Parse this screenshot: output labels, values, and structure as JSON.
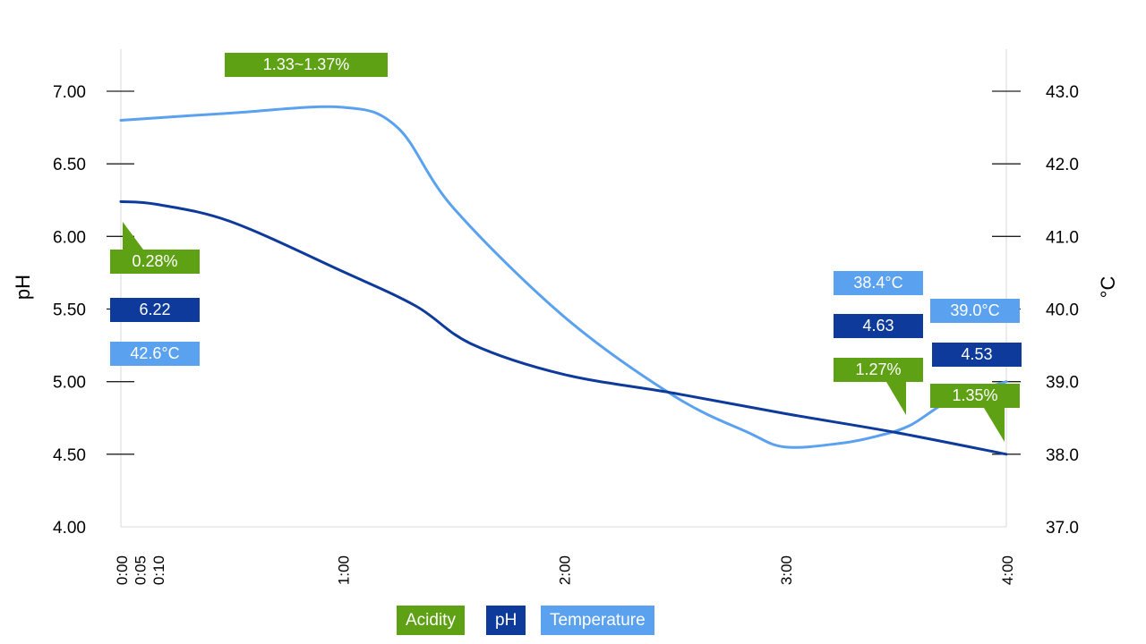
{
  "chart_data": {
    "type": "line",
    "x_ticks": [
      "0:00",
      "0:05",
      "0:10",
      "1:00",
      "2:00",
      "3:00",
      "4:00"
    ],
    "x_tick_minutes": [
      0,
      5,
      10,
      60,
      120,
      180,
      240
    ],
    "xlim_minutes": [
      0,
      240
    ],
    "ylabel_left": "pH",
    "ylim_left": [
      4.0,
      7.25
    ],
    "yticks_left": [
      "4.00",
      "4.50",
      "5.00",
      "5.50",
      "6.00",
      "6.50",
      "7.00"
    ],
    "ylabel_right": "°C",
    "ylim_right": [
      37.0,
      43.5
    ],
    "yticks_right": [
      "37.0",
      "38.0",
      "39.0",
      "40.0",
      "41.0",
      "42.0",
      "43.0"
    ],
    "series": [
      {
        "name": "pH",
        "axis": "left",
        "color": "#0d3a9b",
        "points": [
          [
            0,
            6.24
          ],
          [
            10,
            6.22
          ],
          [
            30,
            6.1
          ],
          [
            60,
            5.76
          ],
          [
            80,
            5.52
          ],
          [
            95,
            5.26
          ],
          [
            120,
            5.05
          ],
          [
            150,
            4.92
          ],
          [
            180,
            4.78
          ],
          [
            210,
            4.65
          ],
          [
            240,
            4.5
          ]
        ]
      },
      {
        "name": "Temperature",
        "axis": "right",
        "color": "#5aa1f0",
        "points": [
          [
            0,
            42.6
          ],
          [
            30,
            42.7
          ],
          [
            60,
            42.78
          ],
          [
            75,
            42.5
          ],
          [
            90,
            41.4
          ],
          [
            120,
            39.9
          ],
          [
            150,
            38.8
          ],
          [
            170,
            38.3
          ],
          [
            180,
            38.1
          ],
          [
            195,
            38.15
          ],
          [
            205,
            38.25
          ],
          [
            214,
            38.4
          ],
          [
            225,
            38.75
          ],
          [
            240,
            39.0
          ]
        ]
      }
    ],
    "annotations": [
      {
        "text": "6.22",
        "series": "pH"
      },
      {
        "text": "42.6°C",
        "series": "Temperature"
      },
      {
        "text": "0.28%",
        "series": "Acidity"
      },
      {
        "text": "1.33~1.37%",
        "series": "Acidity"
      },
      {
        "text": "38.4°C",
        "series": "Temperature"
      },
      {
        "text": "4.63",
        "series": "pH"
      },
      {
        "text": "1.27%",
        "series": "Acidity"
      },
      {
        "text": "39.0°C",
        "series": "Temperature"
      },
      {
        "text": "4.53",
        "series": "pH"
      },
      {
        "text": "1.35%",
        "series": "Acidity"
      }
    ],
    "legend": [
      {
        "label": "Acidity",
        "color": "#5ea114"
      },
      {
        "label": "pH",
        "color": "#0d3a9b"
      },
      {
        "label": "Temperature",
        "color": "#5aa1f0"
      }
    ]
  }
}
